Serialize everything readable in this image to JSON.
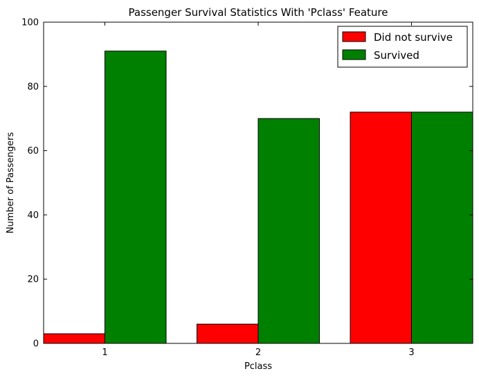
{
  "chart_data": {
    "type": "bar",
    "title": "Passenger Survival Statistics With 'Pclass' Feature",
    "xlabel": "Pclass",
    "ylabel": "Number of Passengers",
    "categories": [
      "1",
      "2",
      "3"
    ],
    "series": [
      {
        "name": "Did not survive",
        "color": "#ff0000",
        "values": [
          3,
          6,
          72
        ]
      },
      {
        "name": "Survived",
        "color": "#008000",
        "values": [
          91,
          70,
          72
        ]
      }
    ],
    "ylim": [
      0,
      100
    ],
    "yticks": [
      "0",
      "20",
      "40",
      "60",
      "80",
      "100"
    ],
    "grid": false,
    "legend_position": "top-right"
  }
}
